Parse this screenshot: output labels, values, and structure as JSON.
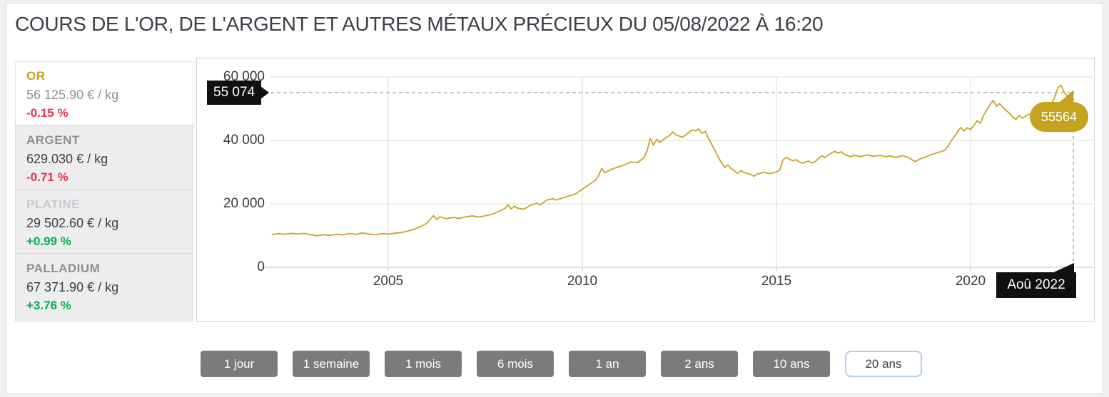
{
  "title": "COURS DE L'OR, DE L'ARGENT ET AUTRES MÉTAUX PRÉCIEUX DU 05/08/2022 À 16:20",
  "metals": [
    {
      "name": "OR",
      "price": "56 125.90 € / kg",
      "change": "-0.15 %",
      "direction": "down",
      "selected": true
    },
    {
      "name": "ARGENT",
      "price": "629.030 € / kg",
      "change": "-0.71 %",
      "direction": "down",
      "selected": false
    },
    {
      "name": "PLATINE",
      "price": "29 502.60 € / kg",
      "change": "+0.99 %",
      "direction": "up",
      "selected": false
    },
    {
      "name": "PALLADIUM",
      "price": "67 371.90 € / kg",
      "change": "+3.76 %",
      "direction": "up",
      "selected": false
    }
  ],
  "chart": {
    "tooltip_left": "55 074",
    "tooltip_right": "55564",
    "tooltip_date": "Aoû 2022"
  },
  "range_buttons": [
    {
      "label": "1 jour",
      "active": false
    },
    {
      "label": "1 semaine",
      "active": false
    },
    {
      "label": "1 mois",
      "active": false
    },
    {
      "label": "6 mois",
      "active": false
    },
    {
      "label": "1 an",
      "active": false
    },
    {
      "label": "2 ans",
      "active": false
    },
    {
      "label": "10 ans",
      "active": false
    },
    {
      "label": "20 ans",
      "active": true
    }
  ],
  "colors": {
    "gold": "#C9A227",
    "gold_bubble": "#C5A31E",
    "red": "#EA2E4E",
    "green": "#00B151",
    "grid": "#DBDBDB",
    "axis": "#BFBFBF",
    "dashed": "#8F8F8F",
    "tag_black": "#101010",
    "button_gray": "#7B7B7B",
    "active_border": "#AFCFEC"
  },
  "chart_data": {
    "type": "line",
    "title": "Cours de l'or en euros par kilogramme sur 20 ans",
    "series_name": "OR (€ / kg)",
    "x_range": [
      2002,
      2022.7
    ],
    "y_range": [
      0,
      62000
    ],
    "grid": true,
    "legend": false,
    "x_tick_values": [
      2005,
      2010,
      2015,
      2020
    ],
    "x_tick_labels": [
      "2005",
      "2010",
      "2015",
      "2020"
    ],
    "y_tick_values": [
      60000,
      40000,
      20000,
      0
    ],
    "y_tick_labels": [
      "60 000",
      "40 000",
      "20 000",
      "0"
    ],
    "line_color": "#C9A227",
    "reference_value": 55074,
    "last_x": 2022.65,
    "last_value": 55564,
    "points": [
      [
        2002.0,
        10300
      ],
      [
        2002.17,
        10600
      ],
      [
        2002.33,
        10400
      ],
      [
        2002.5,
        10700
      ],
      [
        2002.67,
        10500
      ],
      [
        2002.83,
        10700
      ],
      [
        2003.0,
        10300
      ],
      [
        2003.17,
        9950
      ],
      [
        2003.33,
        10250
      ],
      [
        2003.5,
        10050
      ],
      [
        2003.67,
        10400
      ],
      [
        2003.83,
        10200
      ],
      [
        2004.0,
        10650
      ],
      [
        2004.17,
        10350
      ],
      [
        2004.33,
        10800
      ],
      [
        2004.5,
        10500
      ],
      [
        2004.67,
        10250
      ],
      [
        2004.83,
        10600
      ],
      [
        2005.0,
        10450
      ],
      [
        2005.17,
        10750
      ],
      [
        2005.33,
        10950
      ],
      [
        2005.5,
        11400
      ],
      [
        2005.67,
        12000
      ],
      [
        2005.83,
        12800
      ],
      [
        2006.0,
        13900
      ],
      [
        2006.08,
        15100
      ],
      [
        2006.17,
        16300
      ],
      [
        2006.25,
        15100
      ],
      [
        2006.33,
        15900
      ],
      [
        2006.5,
        15300
      ],
      [
        2006.67,
        15750
      ],
      [
        2006.83,
        15400
      ],
      [
        2007.0,
        15900
      ],
      [
        2007.17,
        16200
      ],
      [
        2007.33,
        15850
      ],
      [
        2007.5,
        16250
      ],
      [
        2007.67,
        16700
      ],
      [
        2007.83,
        17500
      ],
      [
        2008.0,
        18500
      ],
      [
        2008.08,
        19650
      ],
      [
        2008.17,
        18400
      ],
      [
        2008.25,
        19250
      ],
      [
        2008.33,
        18650
      ],
      [
        2008.5,
        18300
      ],
      [
        2008.67,
        19600
      ],
      [
        2008.83,
        20150
      ],
      [
        2008.92,
        19700
      ],
      [
        2009.08,
        21200
      ],
      [
        2009.25,
        21600
      ],
      [
        2009.33,
        21200
      ],
      [
        2009.5,
        21900
      ],
      [
        2009.67,
        22500
      ],
      [
        2009.83,
        23200
      ],
      [
        2010.0,
        24600
      ],
      [
        2010.17,
        26000
      ],
      [
        2010.33,
        27400
      ],
      [
        2010.42,
        28900
      ],
      [
        2010.5,
        31200
      ],
      [
        2010.58,
        29800
      ],
      [
        2010.75,
        30900
      ],
      [
        2010.92,
        31600
      ],
      [
        2011.08,
        32300
      ],
      [
        2011.25,
        33200
      ],
      [
        2011.42,
        33000
      ],
      [
        2011.58,
        34500
      ],
      [
        2011.67,
        36800
      ],
      [
        2011.75,
        40600
      ],
      [
        2011.83,
        38500
      ],
      [
        2011.92,
        40300
      ],
      [
        2012.0,
        39400
      ],
      [
        2012.08,
        40200
      ],
      [
        2012.25,
        41600
      ],
      [
        2012.33,
        42700
      ],
      [
        2012.42,
        41700
      ],
      [
        2012.58,
        41000
      ],
      [
        2012.67,
        41800
      ],
      [
        2012.83,
        43300
      ],
      [
        2012.92,
        43000
      ],
      [
        2013.0,
        43600
      ],
      [
        2013.08,
        42300
      ],
      [
        2013.17,
        42800
      ],
      [
        2013.25,
        40600
      ],
      [
        2013.42,
        36800
      ],
      [
        2013.5,
        34800
      ],
      [
        2013.58,
        33000
      ],
      [
        2013.67,
        31500
      ],
      [
        2013.75,
        32300
      ],
      [
        2013.83,
        31200
      ],
      [
        2013.92,
        30400
      ],
      [
        2014.0,
        29600
      ],
      [
        2014.08,
        30500
      ],
      [
        2014.17,
        29900
      ],
      [
        2014.33,
        29300
      ],
      [
        2014.42,
        28700
      ],
      [
        2014.5,
        29400
      ],
      [
        2014.67,
        29900
      ],
      [
        2014.83,
        29500
      ],
      [
        2015.0,
        30100
      ],
      [
        2015.08,
        30600
      ],
      [
        2015.17,
        33800
      ],
      [
        2015.25,
        34700
      ],
      [
        2015.33,
        34100
      ],
      [
        2015.42,
        33600
      ],
      [
        2015.5,
        33900
      ],
      [
        2015.58,
        33300
      ],
      [
        2015.67,
        32800
      ],
      [
        2015.83,
        33500
      ],
      [
        2015.92,
        32900
      ],
      [
        2016.0,
        33400
      ],
      [
        2016.08,
        34300
      ],
      [
        2016.17,
        35200
      ],
      [
        2016.25,
        34600
      ],
      [
        2016.33,
        35400
      ],
      [
        2016.5,
        36600
      ],
      [
        2016.58,
        36000
      ],
      [
        2016.67,
        36400
      ],
      [
        2016.75,
        35600
      ],
      [
        2016.92,
        34800
      ],
      [
        2017.0,
        35300
      ],
      [
        2017.17,
        34900
      ],
      [
        2017.33,
        35400
      ],
      [
        2017.5,
        35000
      ],
      [
        2017.67,
        35300
      ],
      [
        2017.83,
        34800
      ],
      [
        2017.92,
        35100
      ],
      [
        2018.08,
        34700
      ],
      [
        2018.25,
        35200
      ],
      [
        2018.42,
        34500
      ],
      [
        2018.5,
        33800
      ],
      [
        2018.58,
        33300
      ],
      [
        2018.67,
        34000
      ],
      [
        2018.83,
        34700
      ],
      [
        2019.0,
        35600
      ],
      [
        2019.17,
        36200
      ],
      [
        2019.33,
        36800
      ],
      [
        2019.42,
        38200
      ],
      [
        2019.5,
        39800
      ],
      [
        2019.58,
        41200
      ],
      [
        2019.67,
        42800
      ],
      [
        2019.75,
        44100
      ],
      [
        2019.83,
        43000
      ],
      [
        2019.92,
        44000
      ],
      [
        2020.0,
        43400
      ],
      [
        2020.08,
        44600
      ],
      [
        2020.17,
        46200
      ],
      [
        2020.25,
        45400
      ],
      [
        2020.33,
        47800
      ],
      [
        2020.42,
        49600
      ],
      [
        2020.5,
        51200
      ],
      [
        2020.58,
        52600
      ],
      [
        2020.67,
        50800
      ],
      [
        2020.75,
        51600
      ],
      [
        2020.83,
        50400
      ],
      [
        2020.92,
        49400
      ],
      [
        2021.0,
        48600
      ],
      [
        2021.08,
        47400
      ],
      [
        2021.17,
        46600
      ],
      [
        2021.25,
        47900
      ],
      [
        2021.33,
        47000
      ],
      [
        2021.42,
        47600
      ],
      [
        2021.5,
        48300
      ],
      [
        2021.58,
        47800
      ],
      [
        2021.67,
        48800
      ],
      [
        2021.75,
        48200
      ],
      [
        2021.83,
        47600
      ],
      [
        2021.92,
        48400
      ],
      [
        2022.0,
        49800
      ],
      [
        2022.08,
        51400
      ],
      [
        2022.17,
        53600
      ],
      [
        2022.25,
        56600
      ],
      [
        2022.33,
        57400
      ],
      [
        2022.42,
        55000
      ],
      [
        2022.5,
        53900
      ],
      [
        2022.58,
        54800
      ],
      [
        2022.65,
        55564
      ]
    ]
  }
}
